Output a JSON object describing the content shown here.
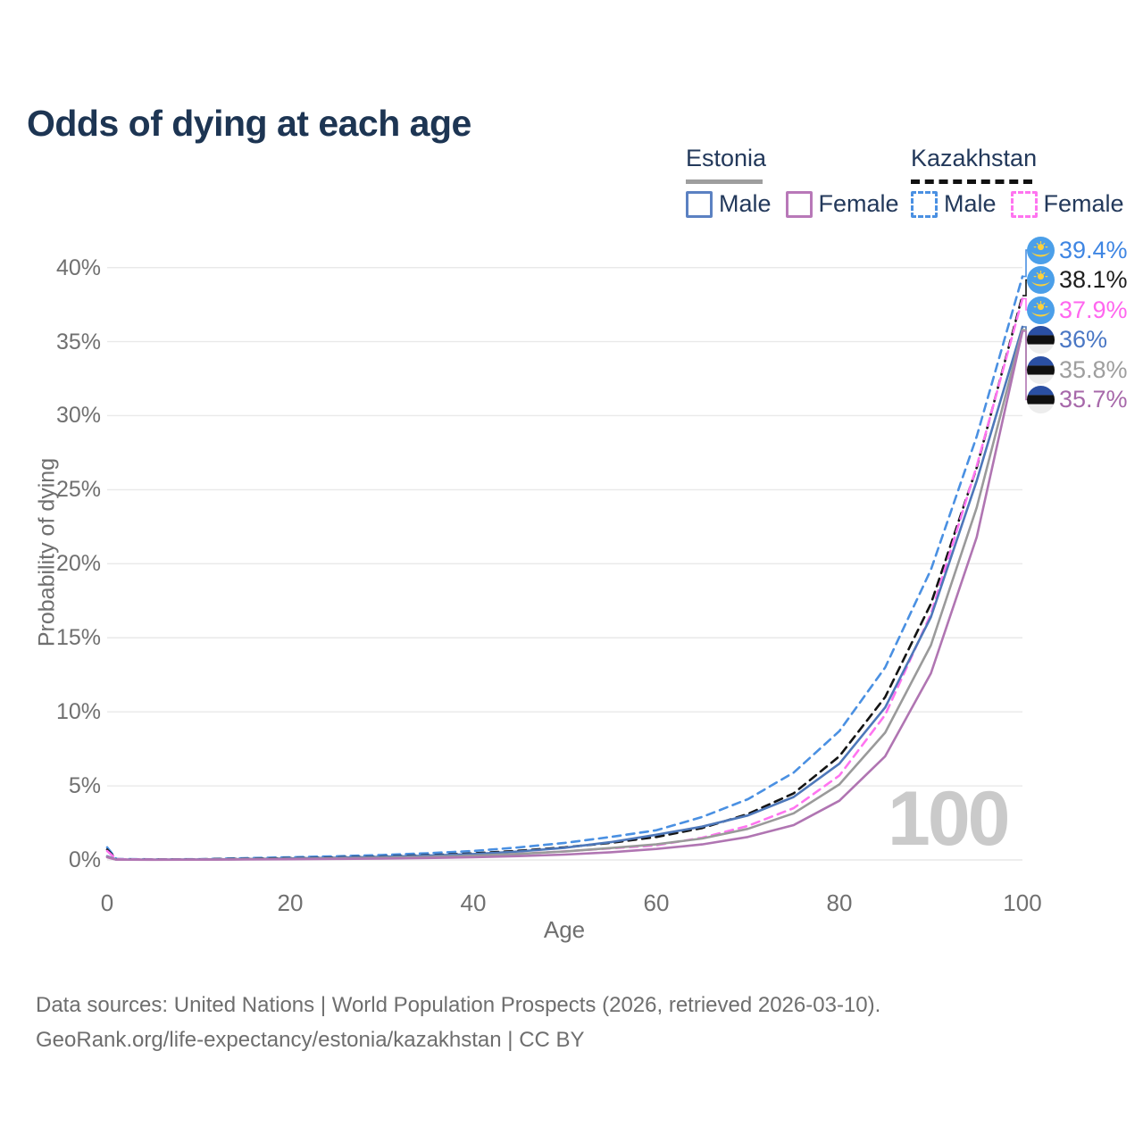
{
  "title": "Odds of dying at each age",
  "watermark": "100",
  "legend": {
    "groups": [
      {
        "name": "Estonia",
        "underline_style": "solid",
        "underline_color": "#9e9e9e",
        "items": [
          {
            "label": "Male",
            "color": "#5b81c2",
            "dash": false
          },
          {
            "label": "Female",
            "color": "#b878b8",
            "dash": false
          }
        ]
      },
      {
        "name": "Kazakhstan",
        "underline_style": "dashed",
        "underline_color": "#111111",
        "items": [
          {
            "label": "Male",
            "color": "#4a90e2",
            "dash": true
          },
          {
            "label": "Female",
            "color": "#ff74f0",
            "dash": true
          }
        ]
      }
    ]
  },
  "chart_data": {
    "type": "line",
    "title": "Odds of dying at each age",
    "xlabel": "Age",
    "ylabel": "Probability of dying",
    "xlim": [
      0,
      100
    ],
    "ylim": [
      0,
      42
    ],
    "grid": "horizontal",
    "legend_position": "top-right",
    "x_ticks": [
      0,
      20,
      40,
      60,
      80,
      100
    ],
    "y_tick_values": [
      0,
      5,
      10,
      15,
      20,
      25,
      30,
      35,
      40
    ],
    "y_tick_labels": [
      "0%",
      "5%",
      "10%",
      "15%",
      "20%",
      "25%",
      "30%",
      "35%",
      "40%"
    ],
    "ages": [
      0,
      1,
      5,
      10,
      15,
      20,
      25,
      30,
      35,
      40,
      45,
      50,
      55,
      60,
      65,
      70,
      75,
      80,
      85,
      90,
      95,
      100
    ],
    "series": [
      {
        "id": "kz-male",
        "country": "Kazakhstan",
        "sex": "Male",
        "flag": "kazakhstan",
        "color": "#4a90e2",
        "label_color": "#3f86e3",
        "dash": true,
        "end_label": "39.4%",
        "end_value": 39.4,
        "values": [
          0.85,
          0.06,
          0.04,
          0.05,
          0.12,
          0.18,
          0.25,
          0.33,
          0.45,
          0.6,
          0.85,
          1.15,
          1.55,
          2.0,
          2.9,
          4.1,
          5.9,
          8.7,
          13.0,
          19.6,
          28.6,
          39.4
        ]
      },
      {
        "id": "kz-both",
        "country": "Kazakhstan",
        "sex": "Both sexes",
        "flag": "kazakhstan",
        "color": "#141414",
        "label_color": "#1d1d1d",
        "dash": true,
        "end_label": "38.1%",
        "end_value": 38.1,
        "values": [
          0.7,
          0.05,
          0.03,
          0.04,
          0.08,
          0.12,
          0.17,
          0.23,
          0.32,
          0.44,
          0.62,
          0.85,
          1.15,
          1.55,
          2.15,
          3.1,
          4.5,
          7.0,
          11.0,
          17.3,
          26.5,
          38.1
        ]
      },
      {
        "id": "kz-female",
        "country": "Kazakhstan",
        "sex": "Female",
        "flag": "kazakhstan",
        "color": "#ff74f0",
        "label_color": "#ff66ef",
        "dash": true,
        "end_label": "37.9%",
        "end_value": 37.9,
        "values": [
          0.6,
          0.05,
          0.03,
          0.03,
          0.05,
          0.07,
          0.1,
          0.14,
          0.2,
          0.29,
          0.41,
          0.58,
          0.78,
          0.98,
          1.5,
          2.3,
          3.5,
          5.7,
          9.8,
          16.6,
          26.6,
          37.9
        ]
      },
      {
        "id": "est-male",
        "country": "Estonia",
        "sex": "Male",
        "flag": "estonia",
        "color": "#4e78ba",
        "label_color": "#4a77c4",
        "dash": false,
        "end_label": "36%",
        "end_value": 36.0,
        "values": [
          0.25,
          0.03,
          0.02,
          0.03,
          0.06,
          0.1,
          0.15,
          0.21,
          0.29,
          0.4,
          0.57,
          0.82,
          1.2,
          1.7,
          2.25,
          3.0,
          4.25,
          6.5,
          10.3,
          16.4,
          25.6,
          36.0
        ]
      },
      {
        "id": "est-both",
        "country": "Estonia",
        "sex": "Both sexes",
        "flag": "estonia",
        "color": "#9a9a9a",
        "label_color": "#9e9e9e",
        "dash": false,
        "end_label": "35.8%",
        "end_value": 35.8,
        "values": [
          0.22,
          0.02,
          0.02,
          0.02,
          0.05,
          0.07,
          0.11,
          0.15,
          0.21,
          0.29,
          0.41,
          0.57,
          0.8,
          1.05,
          1.45,
          2.1,
          3.15,
          5.1,
          8.6,
          14.5,
          23.8,
          35.8
        ]
      },
      {
        "id": "est-female",
        "country": "Estonia",
        "sex": "Female",
        "flag": "estonia",
        "color": "#b075b2",
        "label_color": "#a768aa",
        "dash": false,
        "end_label": "35.7%",
        "end_value": 35.7,
        "values": [
          0.18,
          0.02,
          0.01,
          0.02,
          0.03,
          0.05,
          0.07,
          0.09,
          0.13,
          0.18,
          0.26,
          0.36,
          0.52,
          0.74,
          1.05,
          1.55,
          2.35,
          4.0,
          7.0,
          12.6,
          21.8,
          35.7
        ]
      }
    ]
  },
  "footer": {
    "line1": "Data sources: United Nations | World Population Prospects (2026, retrieved 2026-03-10).",
    "line2": "GeoRank.org/life-expectancy/estonia/kazakhstan | CC BY"
  }
}
